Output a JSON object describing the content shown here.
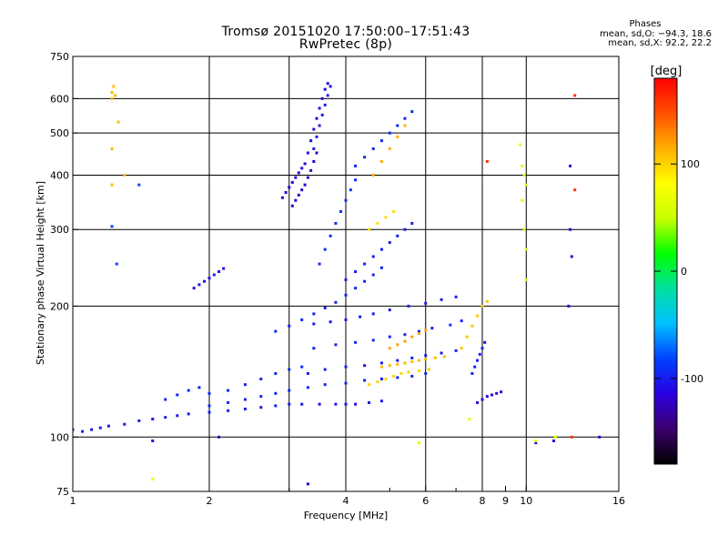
{
  "chart_data": {
    "type": "scatter",
    "title": "Tromsø 20151020 17:50:00–17:51:43",
    "subtitle": "RwPretec (8p)",
    "xlabel": "Frequency [MHz]",
    "ylabel": "Stationary phase Virtual Height [km]",
    "x_scale": "log",
    "y_scale": "log",
    "xlim": [
      1,
      16
    ],
    "ylim": [
      75,
      750
    ],
    "x_ticks": [
      1,
      2,
      4,
      6,
      8,
      9,
      10,
      16
    ],
    "x_tick_labels": [
      "1",
      "2",
      "4",
      "6",
      "8",
      "9",
      "10",
      "16"
    ],
    "x_gridlines": [
      2,
      3,
      4,
      6,
      8,
      10
    ],
    "y_ticks": [
      75,
      100,
      200,
      300,
      400,
      500,
      600,
      750
    ],
    "y_tick_labels": [
      "75",
      "100",
      "200",
      "300",
      "400",
      "500",
      "600",
      "750"
    ],
    "grid": true,
    "colorbar": {
      "label": "[deg]",
      "range": [
        -180,
        180
      ],
      "ticks": [
        100,
        0,
        -100
      ],
      "tick_labels": [
        "100",
        "0",
        "-100"
      ],
      "colormap": [
        "#000000",
        "#3b006b",
        "#2a00e0",
        "#0040ff",
        "#00c0ff",
        "#00e0a0",
        "#00ff00",
        "#c8ff00",
        "#ffff00",
        "#ffb000",
        "#ff5000",
        "#ff0000"
      ]
    },
    "phases": {
      "title": "Phases",
      "line_o": "mean, sd,O: −94.3, 18.6",
      "line_x": "mean, sd,X:  92.2, 22.2"
    },
    "traces": [
      {
        "phase": -100,
        "points": [
          [
            1.0,
            104
          ],
          [
            1.05,
            103
          ],
          [
            1.1,
            104
          ],
          [
            1.15,
            105
          ],
          [
            1.2,
            106
          ],
          [
            1.3,
            107
          ],
          [
            1.4,
            109
          ],
          [
            1.5,
            110
          ],
          [
            1.6,
            111
          ],
          [
            1.7,
            112
          ],
          [
            1.8,
            113
          ],
          [
            2.0,
            114
          ],
          [
            2.2,
            115
          ],
          [
            2.4,
            116
          ],
          [
            2.6,
            117
          ],
          [
            2.8,
            118
          ],
          [
            3.0,
            119
          ]
        ]
      },
      {
        "phase": -105,
        "points": [
          [
            3.2,
            119
          ],
          [
            3.5,
            119
          ],
          [
            3.8,
            119
          ],
          [
            4.0,
            119
          ],
          [
            4.2,
            119
          ],
          [
            4.5,
            120
          ],
          [
            4.8,
            121
          ]
        ]
      },
      {
        "phase": -95,
        "points": [
          [
            2.0,
            118
          ],
          [
            2.2,
            120
          ],
          [
            2.4,
            122
          ],
          [
            2.6,
            124
          ],
          [
            2.8,
            126
          ],
          [
            3.0,
            128
          ],
          [
            3.3,
            130
          ],
          [
            3.6,
            132
          ],
          [
            4.0,
            133
          ],
          [
            4.4,
            135
          ],
          [
            4.8,
            136
          ],
          [
            5.2,
            137
          ],
          [
            5.6,
            138
          ],
          [
            6.0,
            140
          ]
        ]
      },
      {
        "phase": -95,
        "points": [
          [
            1.6,
            122
          ],
          [
            1.7,
            125
          ],
          [
            1.8,
            128
          ],
          [
            1.9,
            130
          ],
          [
            2.0,
            126
          ],
          [
            2.2,
            128
          ],
          [
            2.4,
            132
          ],
          [
            2.6,
            136
          ],
          [
            2.8,
            140
          ],
          [
            3.0,
            143
          ],
          [
            3.2,
            145
          ]
        ]
      },
      {
        "phase": -100,
        "points": [
          [
            3.3,
            140
          ],
          [
            3.6,
            143
          ],
          [
            4.0,
            145
          ],
          [
            4.4,
            146
          ],
          [
            4.8,
            148
          ],
          [
            5.2,
            150
          ],
          [
            5.6,
            152
          ],
          [
            6.0,
            154
          ],
          [
            6.5,
            156
          ],
          [
            7.0,
            158
          ]
        ]
      },
      {
        "phase": -95,
        "points": [
          [
            3.4,
            160
          ],
          [
            3.8,
            163
          ],
          [
            4.2,
            165
          ],
          [
            4.6,
            167
          ],
          [
            5.0,
            170
          ],
          [
            5.4,
            172
          ],
          [
            5.8,
            175
          ],
          [
            6.2,
            178
          ],
          [
            6.8,
            181
          ],
          [
            7.2,
            185
          ]
        ]
      },
      {
        "phase": -100,
        "points": [
          [
            3.4,
            182
          ],
          [
            3.7,
            184
          ],
          [
            4.0,
            186
          ],
          [
            4.3,
            189
          ],
          [
            4.6,
            192
          ],
          [
            5.0,
            196
          ],
          [
            5.5,
            200
          ],
          [
            6.0,
            203
          ],
          [
            6.5,
            207
          ],
          [
            7.0,
            210
          ]
        ]
      },
      {
        "phase": -95,
        "points": [
          [
            2.8,
            175
          ],
          [
            3.0,
            180
          ],
          [
            3.2,
            186
          ],
          [
            3.4,
            192
          ],
          [
            3.6,
            198
          ],
          [
            3.8,
            204
          ],
          [
            4.0,
            212
          ],
          [
            4.2,
            220
          ],
          [
            4.4,
            228
          ],
          [
            4.6,
            236
          ],
          [
            4.8,
            245
          ]
        ]
      },
      {
        "phase": -105,
        "points": [
          [
            1.85,
            220
          ],
          [
            1.9,
            224
          ],
          [
            1.95,
            228
          ],
          [
            2.0,
            232
          ],
          [
            2.05,
            236
          ],
          [
            2.1,
            240
          ],
          [
            2.15,
            244
          ]
        ]
      },
      {
        "phase": -100,
        "points": [
          [
            4.0,
            230
          ],
          [
            4.2,
            240
          ],
          [
            4.4,
            250
          ],
          [
            4.6,
            260
          ],
          [
            4.8,
            270
          ],
          [
            5.0,
            280
          ],
          [
            5.2,
            290
          ],
          [
            5.4,
            300
          ],
          [
            5.6,
            310
          ]
        ]
      },
      {
        "phase": -90,
        "points": [
          [
            3.5,
            250
          ],
          [
            3.6,
            270
          ],
          [
            3.7,
            290
          ],
          [
            3.8,
            310
          ],
          [
            3.9,
            330
          ],
          [
            4.0,
            350
          ],
          [
            4.1,
            370
          ],
          [
            4.2,
            390
          ]
        ]
      },
      {
        "phase": -120,
        "points": [
          [
            3.05,
            340
          ],
          [
            3.1,
            350
          ],
          [
            3.15,
            360
          ],
          [
            3.2,
            370
          ],
          [
            3.25,
            380
          ],
          [
            3.3,
            395
          ],
          [
            3.35,
            410
          ],
          [
            3.4,
            430
          ],
          [
            3.45,
            450
          ]
        ]
      },
      {
        "phase": -115,
        "points": [
          [
            2.9,
            355
          ],
          [
            2.95,
            365
          ],
          [
            3.0,
            375
          ],
          [
            3.05,
            385
          ],
          [
            3.1,
            395
          ],
          [
            3.15,
            405
          ],
          [
            3.2,
            415
          ],
          [
            3.25,
            425
          ]
        ]
      },
      {
        "phase": -110,
        "points": [
          [
            3.3,
            450
          ],
          [
            3.35,
            480
          ],
          [
            3.4,
            510
          ],
          [
            3.45,
            540
          ],
          [
            3.5,
            570
          ],
          [
            3.55,
            600
          ],
          [
            3.6,
            630
          ],
          [
            3.65,
            650
          ]
        ]
      },
      {
        "phase": -100,
        "points": [
          [
            3.4,
            460
          ],
          [
            3.45,
            490
          ],
          [
            3.5,
            520
          ],
          [
            3.55,
            550
          ],
          [
            3.6,
            580
          ],
          [
            3.65,
            610
          ],
          [
            3.7,
            640
          ]
        ]
      },
      {
        "phase": -95,
        "points": [
          [
            4.2,
            420
          ],
          [
            4.4,
            440
          ],
          [
            4.6,
            460
          ],
          [
            4.8,
            480
          ],
          [
            5.0,
            500
          ],
          [
            5.2,
            520
          ],
          [
            5.4,
            540
          ],
          [
            5.6,
            560
          ]
        ]
      },
      {
        "phase": 110,
        "points": [
          [
            4.8,
            145
          ],
          [
            5.0,
            146
          ],
          [
            5.2,
            147
          ],
          [
            5.4,
            148
          ],
          [
            5.6,
            149
          ],
          [
            5.8,
            150
          ],
          [
            6.0,
            151
          ],
          [
            6.3,
            152
          ],
          [
            6.6,
            153
          ]
        ]
      },
      {
        "phase": 100,
        "points": [
          [
            4.5,
            132
          ],
          [
            4.7,
            134
          ],
          [
            4.9,
            136
          ],
          [
            5.1,
            138
          ],
          [
            5.3,
            140
          ],
          [
            5.5,
            141
          ],
          [
            5.8,
            142
          ],
          [
            6.1,
            143
          ]
        ]
      },
      {
        "phase": 120,
        "points": [
          [
            5.0,
            160
          ],
          [
            5.2,
            163
          ],
          [
            5.4,
            166
          ],
          [
            5.6,
            170
          ],
          [
            5.8,
            173
          ],
          [
            6.0,
            176
          ]
        ]
      },
      {
        "phase": 115,
        "points": [
          [
            4.6,
            400
          ],
          [
            4.8,
            430
          ],
          [
            5.0,
            460
          ],
          [
            5.2,
            490
          ],
          [
            5.4,
            520
          ]
        ]
      },
      {
        "phase": 95,
        "points": [
          [
            4.5,
            300
          ],
          [
            4.7,
            310
          ],
          [
            4.9,
            320
          ],
          [
            5.1,
            330
          ]
        ]
      },
      {
        "phase": -110,
        "points": [
          [
            7.8,
            120
          ],
          [
            8.0,
            122
          ],
          [
            8.2,
            124
          ],
          [
            8.4,
            125
          ],
          [
            8.6,
            126
          ],
          [
            8.8,
            127
          ]
        ]
      },
      {
        "phase": 105,
        "points": [
          [
            7.2,
            160
          ],
          [
            7.4,
            170
          ],
          [
            7.6,
            180
          ],
          [
            7.8,
            190
          ],
          [
            8.0,
            200
          ],
          [
            8.2,
            205
          ]
        ]
      },
      {
        "phase": -100,
        "points": [
          [
            7.6,
            140
          ],
          [
            7.7,
            145
          ],
          [
            7.8,
            150
          ],
          [
            7.9,
            155
          ],
          [
            8.0,
            160
          ],
          [
            8.1,
            165
          ]
        ]
      },
      {
        "phase": 110,
        "points": [
          [
            1.22,
            600
          ],
          [
            1.22,
            620
          ],
          [
            1.23,
            640
          ],
          [
            1.24,
            610
          ],
          [
            1.26,
            530
          ],
          [
            1.3,
            400
          ],
          [
            1.22,
            460
          ],
          [
            1.22,
            380
          ]
        ]
      },
      {
        "phase": -80,
        "points": [
          [
            1.22,
            305
          ],
          [
            1.25,
            250
          ],
          [
            1.4,
            380
          ]
        ]
      },
      {
        "phase": 60,
        "points": [
          [
            9.7,
            470
          ],
          [
            9.8,
            420
          ],
          [
            9.9,
            400
          ],
          [
            10.0,
            380
          ],
          [
            9.8,
            350
          ],
          [
            9.9,
            300
          ],
          [
            10.0,
            270
          ],
          [
            10.0,
            230
          ]
        ]
      },
      {
        "phase": -110,
        "points": [
          [
            12.5,
            420
          ],
          [
            12.5,
            300
          ],
          [
            12.6,
            260
          ],
          [
            12.4,
            200
          ]
        ]
      },
      {
        "phase": 160,
        "points": [
          [
            8.2,
            430
          ],
          [
            12.8,
            610
          ],
          [
            12.8,
            370
          ],
          [
            12.6,
            100
          ]
        ]
      },
      {
        "phase": -120,
        "points": [
          [
            3.3,
            78
          ],
          [
            10.5,
            97
          ],
          [
            11.5,
            98
          ],
          [
            14.5,
            100
          ],
          [
            2.1,
            100
          ],
          [
            1.5,
            98
          ]
        ]
      },
      {
        "phase": 70,
        "points": [
          [
            10.5,
            98
          ],
          [
            11.6,
            100
          ],
          [
            1.5,
            80
          ],
          [
            5.8,
            97
          ],
          [
            7.5,
            110
          ]
        ]
      }
    ]
  },
  "colors": {
    "background": "#ffffff",
    "axis": "#000000",
    "grid": "#000000"
  }
}
